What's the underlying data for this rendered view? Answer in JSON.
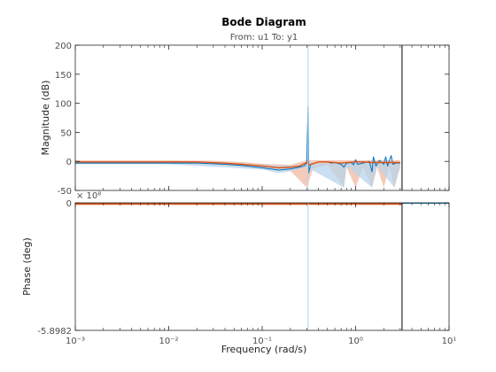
{
  "chart_data": {
    "type": "line",
    "title": "Bode Diagram",
    "subtitle": "From: u1  To: y1",
    "xlabel": "Frequency  (rad/s)",
    "xscale": "log",
    "xlim": [
      0.001,
      10
    ],
    "x_tick_labels": [
      "10⁻³",
      "10⁻²",
      "10⁻¹",
      "10⁰",
      "10¹"
    ],
    "grid": false,
    "legend": "none",
    "colors": {
      "estimate": "#0072bd",
      "model": "#d95319",
      "confidence": "#f0b8a0",
      "uncertainty": "#b8d4ec",
      "axis": "#262626"
    },
    "cursor_lines": [
      {
        "x": 0.31,
        "color": "#b8d4ec"
      },
      {
        "x": 3.14,
        "color": "#000000"
      }
    ],
    "magnitude": {
      "ylabel": "Magnitude (dB)",
      "ylim": [
        -50,
        200
      ],
      "y_ticks": [
        -50,
        0,
        50,
        100,
        150,
        200
      ],
      "y_tick_labels": [
        "-50",
        "0",
        "50",
        "100",
        "150",
        "200"
      ],
      "series": [
        {
          "name": "",
          "color": "#0072bd",
          "points": [
            [
              0.001,
              -3
            ],
            [
              0.003,
              -3
            ],
            [
              0.01,
              -3
            ],
            [
              0.02,
              -3
            ],
            [
              0.04,
              -5
            ],
            [
              0.06,
              -7
            ],
            [
              0.1,
              -11
            ],
            [
              0.15,
              -15
            ],
            [
              0.2,
              -13
            ],
            [
              0.25,
              -10
            ],
            [
              0.28,
              -8
            ],
            [
              0.3,
              -3
            ],
            [
              0.31,
              95
            ],
            [
              0.315,
              -20
            ],
            [
              0.33,
              -5
            ],
            [
              0.4,
              -1
            ],
            [
              0.5,
              -1
            ],
            [
              0.55,
              -3
            ],
            [
              0.6,
              -2
            ],
            [
              0.7,
              -5
            ],
            [
              0.75,
              -10
            ],
            [
              0.8,
              -3
            ],
            [
              0.9,
              -2
            ],
            [
              0.95,
              -6
            ],
            [
              1.0,
              3
            ],
            [
              1.05,
              -5
            ],
            [
              1.2,
              -3
            ],
            [
              1.4,
              0
            ],
            [
              1.5,
              -18
            ],
            [
              1.55,
              8
            ],
            [
              1.65,
              -8
            ],
            [
              1.8,
              2
            ],
            [
              2.0,
              -5
            ],
            [
              2.1,
              8
            ],
            [
              2.2,
              -8
            ],
            [
              2.4,
              10
            ],
            [
              2.5,
              -5
            ],
            [
              2.7,
              -3
            ],
            [
              3.0,
              -3
            ]
          ]
        },
        {
          "name": "",
          "color": "#d95319",
          "points": [
            [
              0.001,
              -1
            ],
            [
              0.003,
              -1
            ],
            [
              0.01,
              -1
            ],
            [
              0.02,
              -1
            ],
            [
              0.04,
              -3
            ],
            [
              0.06,
              -5
            ],
            [
              0.1,
              -8
            ],
            [
              0.15,
              -11
            ],
            [
              0.2,
              -10
            ],
            [
              0.25,
              -8
            ],
            [
              0.3,
              -2
            ],
            [
              0.32,
              -6
            ],
            [
              0.4,
              -1
            ],
            [
              0.5,
              -1
            ],
            [
              0.7,
              -3
            ],
            [
              0.8,
              -2
            ],
            [
              1.0,
              -1
            ],
            [
              1.2,
              -1
            ],
            [
              1.5,
              -2
            ],
            [
              2.0,
              -2
            ],
            [
              2.5,
              -2
            ],
            [
              3.0,
              -2
            ]
          ]
        },
        {
          "name": "",
          "color": "#f0b8a0",
          "band": true,
          "upper": [
            [
              0.001,
              2
            ],
            [
              0.01,
              2
            ],
            [
              0.03,
              1
            ],
            [
              0.06,
              -1
            ],
            [
              0.1,
              -4
            ],
            [
              0.2,
              -6
            ],
            [
              0.3,
              2
            ],
            [
              0.5,
              2
            ],
            [
              1.0,
              2
            ],
            [
              2.0,
              2
            ],
            [
              3.0,
              2
            ]
          ],
          "lower": [
            [
              0.001,
              -4
            ],
            [
              0.01,
              -4
            ],
            [
              0.03,
              -5
            ],
            [
              0.06,
              -9
            ],
            [
              0.1,
              -13
            ],
            [
              0.2,
              -16
            ],
            [
              0.3,
              -45
            ],
            [
              0.35,
              -12
            ],
            [
              0.5,
              -6
            ],
            [
              0.75,
              -45
            ],
            [
              0.8,
              -10
            ],
            [
              1.0,
              -45
            ],
            [
              1.2,
              -10
            ],
            [
              1.5,
              -45
            ],
            [
              1.7,
              -10
            ],
            [
              2.0,
              -45
            ],
            [
              2.3,
              -10
            ],
            [
              2.6,
              -45
            ],
            [
              3.0,
              -10
            ]
          ]
        },
        {
          "name": "",
          "color": "#b8d4ec",
          "band": true,
          "upper": [
            [
              0.001,
              -1
            ],
            [
              0.01,
              -1
            ],
            [
              0.1,
              -6
            ],
            [
              0.2,
              -8
            ],
            [
              0.3,
              -4
            ],
            [
              1.0,
              -2
            ],
            [
              3.0,
              -2
            ]
          ],
          "lower": [
            [
              0.001,
              -5
            ],
            [
              0.01,
              -5
            ],
            [
              0.1,
              -14
            ],
            [
              0.15,
              -20
            ],
            [
              0.2,
              -17
            ],
            [
              0.3,
              -10
            ],
            [
              0.75,
              -45
            ],
            [
              0.8,
              -8
            ],
            [
              1.5,
              -45
            ],
            [
              1.7,
              -8
            ],
            [
              2.6,
              -45
            ],
            [
              3.0,
              -8
            ]
          ]
        }
      ]
    },
    "phase": {
      "ylabel": "Phase (deg)",
      "ylim": [
        -5.8982,
        0
      ],
      "exponent_label": "× 10⁸",
      "y_tick_labels": [
        "0",
        "-5.8982"
      ],
      "series": [
        {
          "name": "",
          "color": "#0072bd",
          "points": [
            [
              0.001,
              0
            ],
            [
              10,
              0
            ]
          ]
        },
        {
          "name": "",
          "color": "#d95319",
          "points": [
            [
              0.001,
              -0.05
            ],
            [
              3.14,
              -0.05
            ]
          ]
        }
      ]
    }
  }
}
